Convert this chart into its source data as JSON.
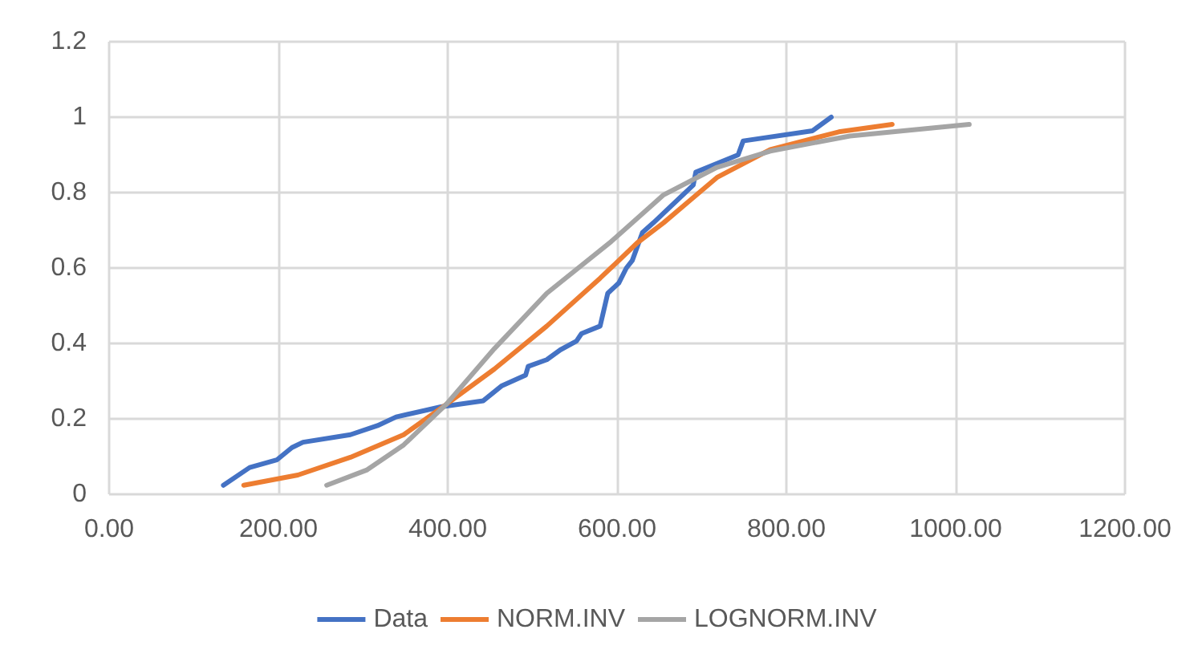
{
  "chart_data": {
    "type": "line",
    "xlim": [
      0,
      1200
    ],
    "ylim": [
      0,
      1.2
    ],
    "xticks": [
      {
        "value": 0,
        "label": "0.00"
      },
      {
        "value": 200,
        "label": "200.00"
      },
      {
        "value": 400,
        "label": "400.00"
      },
      {
        "value": 600,
        "label": "600.00"
      },
      {
        "value": 800,
        "label": "800.00"
      },
      {
        "value": 1000,
        "label": "1000.00"
      },
      {
        "value": 1200,
        "label": "1200.00"
      }
    ],
    "yticks": [
      0,
      0.2,
      0.4,
      0.6,
      0.8,
      1,
      1.2
    ],
    "grid": true,
    "legend": "bottom",
    "marker": "none",
    "line_style": "solid",
    "series": [
      {
        "name": "Data",
        "color": "#4472c4",
        "x": [
          135,
          166,
          198,
          216,
          229,
          285,
          317,
          339,
          392,
          442,
          464,
          492,
          495,
          517,
          533,
          552,
          558,
          580,
          589,
          602,
          611,
          618,
          630,
          643,
          690,
          693,
          743,
          749,
          831,
          853
        ],
        "values": [
          0.024,
          0.071,
          0.091,
          0.124,
          0.138,
          0.158,
          0.182,
          0.205,
          0.232,
          0.248,
          0.288,
          0.316,
          0.339,
          0.357,
          0.383,
          0.406,
          0.426,
          0.446,
          0.533,
          0.56,
          0.6,
          0.62,
          0.694,
          0.72,
          0.82,
          0.854,
          0.9,
          0.937,
          0.964,
          1.0
        ]
      },
      {
        "name": "NORM.INV",
        "color": "#ed7d31",
        "x": [
          159,
          223,
          285,
          348,
          398,
          455,
          517,
          580,
          624,
          655,
          718,
          781,
          862,
          925
        ],
        "values": [
          0.024,
          0.051,
          0.098,
          0.158,
          0.238,
          0.332,
          0.446,
          0.573,
          0.667,
          0.72,
          0.84,
          0.914,
          0.961,
          0.981
        ]
      },
      {
        "name": "LOGNORM.INV",
        "color": "#a5a5a5",
        "x": [
          257,
          304,
          348,
          398,
          455,
          517,
          593,
          655,
          718,
          781,
          875,
          1016
        ],
        "values": [
          0.024,
          0.064,
          0.131,
          0.238,
          0.386,
          0.533,
          0.67,
          0.794,
          0.867,
          0.91,
          0.95,
          0.981
        ]
      }
    ]
  }
}
